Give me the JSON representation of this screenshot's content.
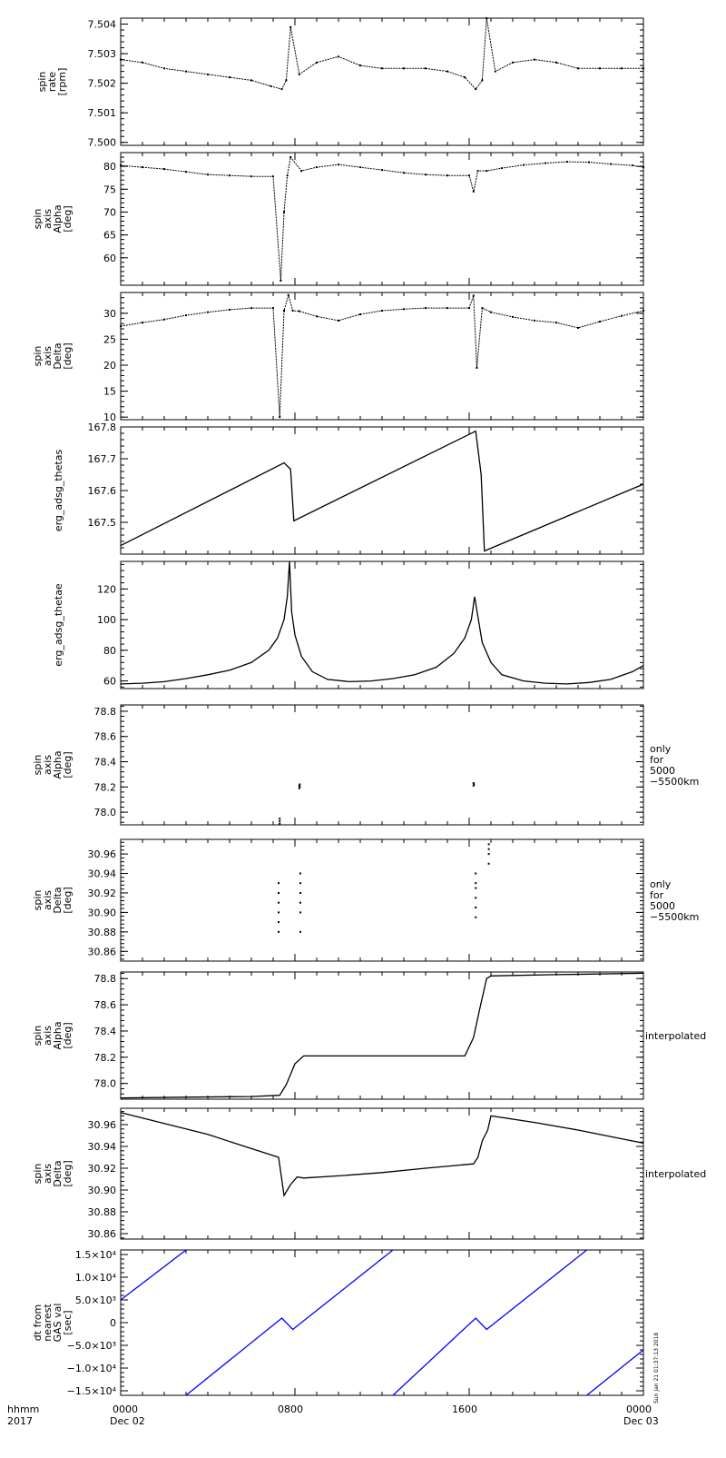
{
  "chart_data": [
    {
      "type": "scatter",
      "ylabel": [
        "spin",
        "rate",
        "[rpm]"
      ],
      "ylim": [
        7.4999,
        7.5042
      ],
      "yticks": [
        7.5,
        7.501,
        7.502,
        7.503,
        7.504
      ],
      "ytick_labels": [
        "7.500",
        "7.501",
        "7.502",
        "7.503",
        "7.504"
      ],
      "note": [],
      "x_hours": [
        0,
        1,
        2,
        3,
        4,
        5,
        6,
        6.9,
        7.4,
        7.6,
        7.8,
        8.2,
        9,
        10,
        11,
        12,
        13,
        14,
        15,
        15.8,
        16.3,
        16.6,
        16.8,
        17.2,
        18,
        19,
        20,
        21,
        22,
        23,
        24
      ],
      "values": [
        7.5028,
        7.5027,
        7.5025,
        7.5024,
        7.5023,
        7.5022,
        7.5021,
        7.5019,
        7.5018,
        7.5021,
        7.5039,
        7.5023,
        7.5027,
        7.5029,
        7.5026,
        7.5025,
        7.5025,
        7.5025,
        7.5024,
        7.5022,
        7.5018,
        7.5021,
        7.5042,
        7.5024,
        7.5027,
        7.5028,
        7.5027,
        7.5025,
        7.5025,
        7.5025,
        7.5025
      ]
    },
    {
      "type": "scatter",
      "ylabel": [
        "spin",
        "axis",
        "Alpha",
        "[deg]"
      ],
      "ylim": [
        54,
        83
      ],
      "yticks": [
        60,
        65,
        70,
        75,
        80
      ],
      "ytick_labels": [
        "60",
        "65",
        "70",
        "75",
        "80"
      ],
      "note": [],
      "x_hours": [
        0,
        1,
        2,
        3,
        4,
        5,
        6,
        7,
        7.35,
        7.5,
        7.65,
        7.8,
        8.3,
        9,
        10,
        11,
        12,
        13,
        14,
        15,
        16,
        16.2,
        16.4,
        16.8,
        17.5,
        18.5,
        19.5,
        20.5,
        21.5,
        22.5,
        23.5,
        24
      ],
      "values": [
        80.2,
        79.8,
        79.4,
        78.8,
        78.2,
        78,
        77.8,
        77.8,
        55,
        70,
        78,
        82,
        79,
        79.8,
        80.4,
        79.8,
        79.2,
        78.6,
        78.2,
        78,
        78,
        74.5,
        79,
        79,
        79.6,
        80.3,
        80.7,
        81,
        80.9,
        80.5,
        80.2,
        79.8
      ]
    },
    {
      "type": "scatter",
      "ylabel": [
        "spin",
        "axis",
        "Delta",
        "[deg]"
      ],
      "ylim": [
        9.5,
        34
      ],
      "yticks": [
        10,
        15,
        20,
        25,
        30
      ],
      "ytick_labels": [
        "10",
        "15",
        "20",
        "25",
        "30"
      ],
      "note": [],
      "x_hours": [
        0,
        1,
        2,
        3,
        4,
        5,
        6,
        7,
        7.3,
        7.5,
        7.7,
        7.9,
        8.2,
        9,
        10,
        11,
        12,
        13,
        14,
        15,
        16,
        16.2,
        16.35,
        16.6,
        17,
        18,
        19,
        20,
        21,
        22,
        23,
        24
      ],
      "values": [
        27.5,
        28.2,
        28.8,
        29.6,
        30.2,
        30.7,
        31,
        31,
        10,
        30.5,
        33.5,
        30.5,
        30.4,
        29.4,
        28.6,
        29.8,
        30.5,
        30.8,
        31,
        31,
        31,
        33.4,
        19.5,
        31,
        30.2,
        29.3,
        28.6,
        28.2,
        27.2,
        28.4,
        29.5,
        30.5
      ]
    },
    {
      "type": "line",
      "ylabel": [
        "erg_adsg_thetas"
      ],
      "ylim": [
        167.4,
        167.8
      ],
      "yticks": [
        167.5,
        167.6,
        167.7,
        167.8
      ],
      "ytick_labels": [
        "167.5",
        "167.6",
        "167.7",
        "167.8"
      ],
      "note": [],
      "x_hours": [
        0,
        7.5,
        7.8,
        7.95,
        16.3,
        16.55,
        16.7,
        24
      ],
      "values": [
        167.427,
        167.687,
        167.667,
        167.505,
        167.787,
        167.65,
        167.41,
        167.62
      ]
    },
    {
      "type": "line",
      "ylabel": [
        "erg_adsg_thetae"
      ],
      "ylim": [
        55,
        138
      ],
      "yticks": [
        60,
        80,
        100,
        120
      ],
      "ytick_labels": [
        "60",
        "80",
        "100",
        "120"
      ],
      "note": [],
      "x_hours": [
        0,
        1,
        2,
        3,
        4,
        5,
        6,
        6.8,
        7.2,
        7.5,
        7.65,
        7.75,
        7.85,
        8.0,
        8.3,
        8.8,
        9.5,
        10.5,
        11.5,
        12.5,
        13.5,
        14.5,
        15.3,
        15.8,
        16.1,
        16.25,
        16.4,
        16.6,
        17,
        17.5,
        18.5,
        19.5,
        20.5,
        21.5,
        22.5,
        23.5,
        24
      ],
      "values": [
        58,
        58.5,
        59.5,
        61.5,
        64,
        67,
        72,
        80,
        88,
        100,
        115,
        138,
        105,
        90,
        76,
        66,
        61,
        59.5,
        60,
        61.5,
        64,
        69,
        78,
        88,
        100,
        115,
        102,
        85,
        72,
        64,
        60,
        58.5,
        58,
        59,
        61,
        66,
        70
      ]
    },
    {
      "type": "scatter",
      "ylabel": [
        "spin",
        "axis",
        "Alpha",
        "[deg]"
      ],
      "ylim": [
        77.9,
        78.85
      ],
      "yticks": [
        78,
        78.2,
        78.4,
        78.6,
        78.8
      ],
      "ytick_labels": [
        "78.0",
        "78.2",
        "78.4",
        "78.6",
        "78.8"
      ],
      "note": [
        "only",
        "for",
        "5000",
        "−5500km"
      ],
      "x_hours": [
        7.3,
        7.3,
        7.3,
        8.2,
        8.2,
        8.22,
        8.22,
        16.2,
        16.2,
        16.22
      ],
      "values": [
        77.91,
        77.93,
        77.95,
        78.19,
        78.21,
        78.2,
        78.22,
        78.21,
        78.23,
        78.22
      ]
    },
    {
      "type": "scatter",
      "ylabel": [
        "spin",
        "axis",
        "Delta",
        "[deg]"
      ],
      "ylim": [
        30.85,
        30.975
      ],
      "yticks": [
        30.86,
        30.88,
        30.9,
        30.92,
        30.94,
        30.96
      ],
      "ytick_labels": [
        "30.86",
        "30.88",
        "30.90",
        "30.92",
        "30.94",
        "30.96"
      ],
      "note": [
        "only",
        "for",
        "5000",
        "−5500km"
      ],
      "x_hours": [
        7.25,
        7.25,
        7.25,
        7.25,
        7.25,
        7.25,
        8.25,
        8.25,
        8.25,
        8.25,
        8.25,
        8.25,
        16.3,
        16.3,
        16.3,
        16.3,
        16.3,
        16.3,
        16.9,
        16.9,
        16.9,
        16.9
      ],
      "values": [
        30.88,
        30.89,
        30.9,
        30.91,
        30.92,
        30.93,
        30.88,
        30.9,
        30.91,
        30.92,
        30.93,
        30.94,
        30.895,
        30.905,
        30.915,
        30.925,
        30.93,
        30.94,
        30.95,
        30.96,
        30.965,
        30.97
      ]
    },
    {
      "type": "line",
      "ylabel": [
        "spin",
        "axis",
        "Alpha",
        "[deg]"
      ],
      "ylim": [
        77.88,
        78.85
      ],
      "yticks": [
        78,
        78.2,
        78.4,
        78.6,
        78.8
      ],
      "ytick_labels": [
        "78.0",
        "78.2",
        "78.4",
        "78.6",
        "78.8"
      ],
      "note": [
        "interpolated"
      ],
      "x_hours": [
        0,
        3,
        6,
        7.3,
        7.6,
        8,
        8.4,
        12,
        15.8,
        16.2,
        16.5,
        16.8,
        17,
        20,
        24
      ],
      "values": [
        77.89,
        77.895,
        77.9,
        77.91,
        77.99,
        78.15,
        78.21,
        78.21,
        78.21,
        78.35,
        78.58,
        78.8,
        78.82,
        78.83,
        78.84
      ]
    },
    {
      "type": "line",
      "ylabel": [
        "spin",
        "axis",
        "Delta",
        "[deg]"
      ],
      "ylim": [
        30.855,
        30.975
      ],
      "yticks": [
        30.86,
        30.88,
        30.9,
        30.92,
        30.94,
        30.96
      ],
      "ytick_labels": [
        "30.86",
        "30.88",
        "30.90",
        "30.92",
        "30.94",
        "30.96"
      ],
      "note": [
        "interpolated"
      ],
      "x_hours": [
        0,
        2,
        4,
        6,
        7.25,
        7.5,
        7.8,
        8.1,
        8.4,
        10,
        12,
        14,
        16.2,
        16.4,
        16.6,
        16.85,
        17,
        19,
        21,
        23,
        24
      ],
      "values": [
        30.971,
        30.961,
        30.951,
        30.938,
        30.93,
        30.895,
        30.905,
        30.912,
        30.911,
        30.913,
        30.916,
        30.92,
        30.924,
        30.93,
        30.945,
        30.955,
        30.968,
        30.962,
        30.955,
        30.947,
        30.943
      ]
    },
    {
      "type": "line",
      "ylabel": [
        "dt from",
        "nearest",
        "GAS val",
        "[sec]"
      ],
      "ylim": [
        -16000,
        16000
      ],
      "yticks": [
        -15000,
        -10000,
        -5000,
        0,
        5000,
        10000,
        15000
      ],
      "ytick_labels": [
        "−1.5×10⁴",
        "−1.0×10⁴",
        "−5.0×10³",
        "0",
        "5.0×10³",
        "1.0×10⁴",
        "1.5×10⁴"
      ],
      "note": [],
      "color": "#0000ff",
      "x_hours": [
        0,
        3,
        3,
        7.4,
        7.9,
        12.5,
        12.5,
        16.3,
        16.8,
        21.4,
        21.4,
        24
      ],
      "values": [
        5000,
        16000,
        -16000,
        1000,
        -1500,
        16000,
        -16000,
        1000,
        -1500,
        16000,
        -16000,
        -6000
      ]
    }
  ],
  "x_axis": {
    "tick_labels": [
      "0000",
      "0800",
      "1600",
      "0000"
    ],
    "date_labels": [
      "Dec 02",
      "",
      "",
      "Dec 03"
    ],
    "left_labels": [
      "hhmm",
      "2017"
    ],
    "range_hours": [
      0,
      24
    ]
  },
  "stamp": "Sun Jan 21 01:37:13 2018"
}
